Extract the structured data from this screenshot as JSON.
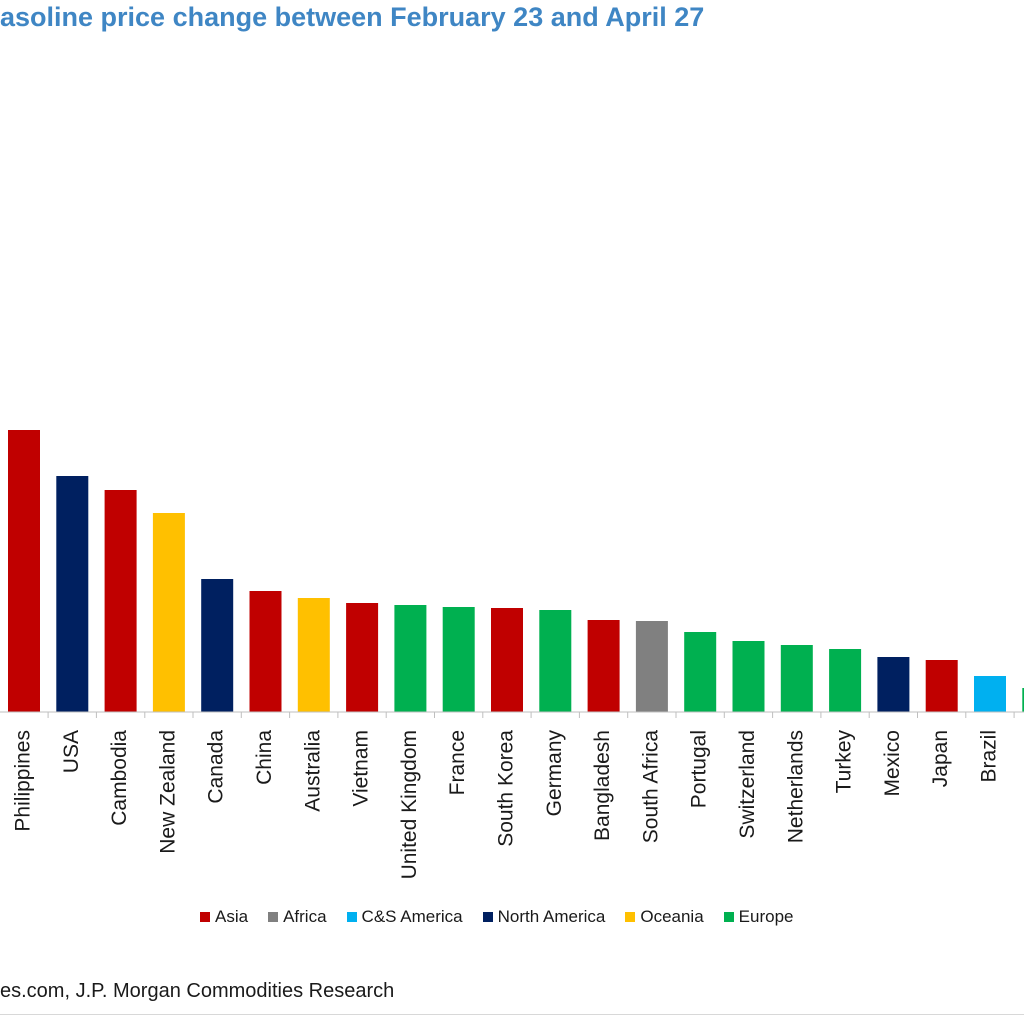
{
  "title": "asoline price change between February 23 and April 27",
  "source": "es.com, J.P. Morgan Commodities Research",
  "colors": {
    "Asia": "#c00000",
    "Africa": "#808080",
    "C&S America": "#00b0f0",
    "North America": "#002060",
    "Oceania": "#ffc000",
    "Europe": "#00b050"
  },
  "legend": [
    {
      "label": "Asia",
      "color": "#c00000"
    },
    {
      "label": "Africa",
      "color": "#808080"
    },
    {
      "label": "C&S America",
      "color": "#00b0f0"
    },
    {
      "label": "North America",
      "color": "#002060"
    },
    {
      "label": "Oceania",
      "color": "#ffc000"
    },
    {
      "label": "Europe",
      "color": "#00b050"
    }
  ],
  "chart_data": {
    "type": "bar",
    "title": "asoline price change between February 23 and April 27",
    "xlabel": "",
    "ylabel": "",
    "grid": false,
    "legend_position": "bottom",
    "value_scale": "relative bar height (no axis scale shown)",
    "categories": [
      "Philippines",
      "USA",
      "Cambodia",
      "New Zealand",
      "Canada",
      "China",
      "Australia",
      "Vietnam",
      "United Kingdom",
      "France",
      "South Korea",
      "Germany",
      "Bangladesh",
      "South Africa",
      "Portugal",
      "Switzerland",
      "Netherlands",
      "Turkey",
      "Mexico",
      "Japan",
      "Brazil",
      ""
    ],
    "regions": [
      "Asia",
      "North America",
      "Asia",
      "Oceania",
      "North America",
      "Asia",
      "Oceania",
      "Asia",
      "Europe",
      "Europe",
      "Asia",
      "Europe",
      "Asia",
      "Africa",
      "Europe",
      "Europe",
      "Europe",
      "Europe",
      "North America",
      "Asia",
      "C&S America",
      "Europe"
    ],
    "values": [
      282,
      236,
      222,
      199,
      133,
      121,
      114,
      109,
      107,
      105,
      104,
      102,
      92,
      91,
      80,
      71,
      67,
      63,
      55,
      52,
      36,
      24
    ],
    "ylim": [
      0,
      300
    ]
  }
}
